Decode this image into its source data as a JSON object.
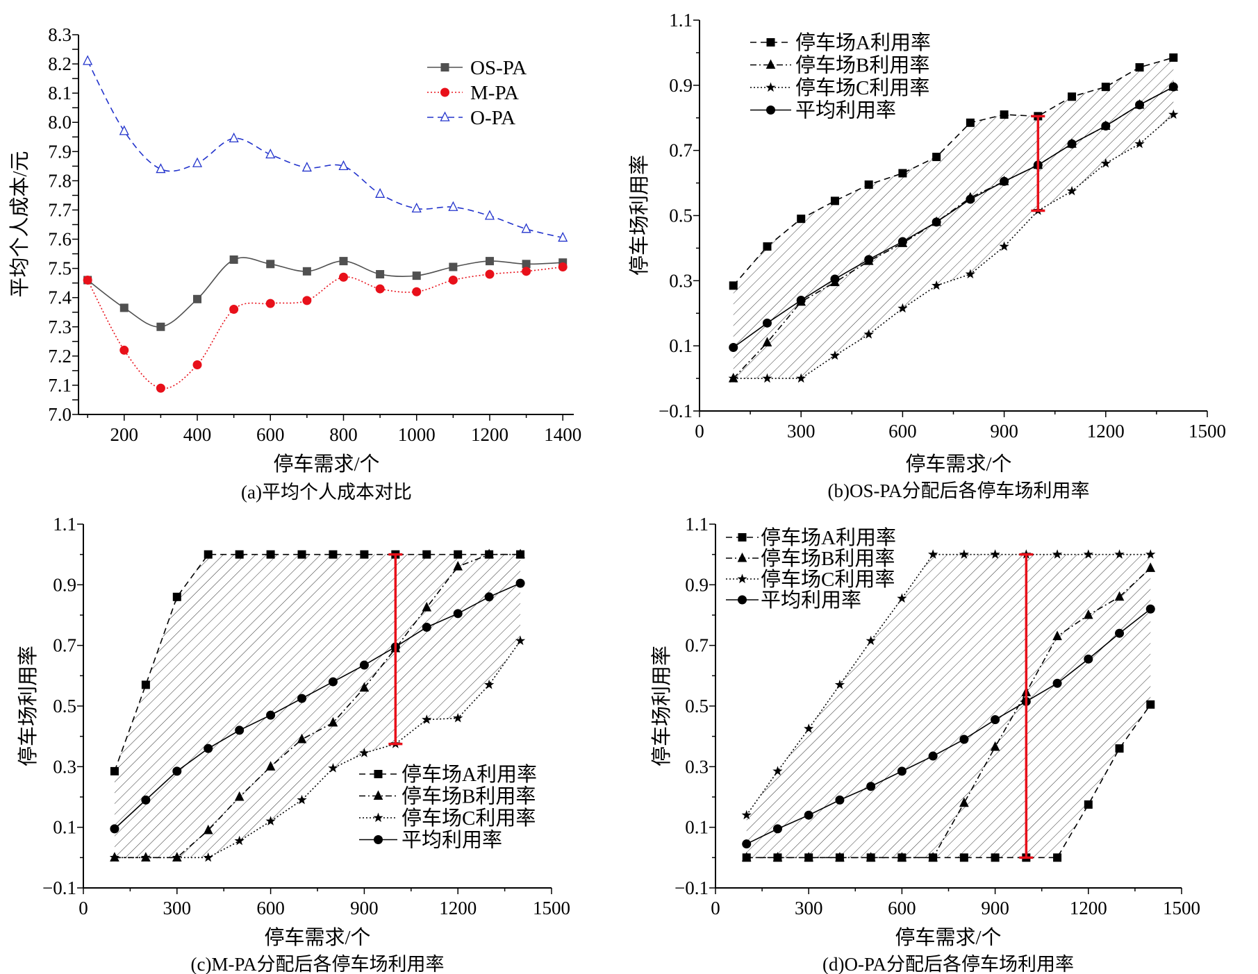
{
  "chart_data": [
    {
      "type": "line",
      "panel": "a",
      "caption": "(a)平均个人成本对比",
      "xlabel": "停车需求/个",
      "ylabel": "平均个人成本/元",
      "xlim": [
        75,
        1430
      ],
      "ylim": [
        7.0,
        8.3
      ],
      "xticks": [
        200,
        400,
        600,
        800,
        1000,
        1200,
        1400
      ],
      "yticks": [
        "7.0",
        "7.1",
        "7.2",
        "7.3",
        "7.4",
        "7.5",
        "7.6",
        "7.7",
        "7.8",
        "7.9",
        "8.0",
        "8.1",
        "8.2",
        "8.3"
      ],
      "legend_position": "top-right",
      "grid": false,
      "smooth": true,
      "x": [
        100,
        200,
        300,
        400,
        500,
        600,
        700,
        800,
        900,
        1000,
        1100,
        1200,
        1300,
        1400
      ],
      "series": [
        {
          "name": "OS-PA",
          "color": "#505050",
          "style": "solid",
          "marker": "square-filled",
          "values": [
            7.46,
            7.365,
            7.3,
            7.395,
            7.53,
            7.515,
            7.49,
            7.525,
            7.48,
            7.475,
            7.505,
            7.525,
            7.515,
            7.52
          ]
        },
        {
          "name": "M-PA",
          "color": "#e8101a",
          "style": "dotted",
          "marker": "circle-filled",
          "values": [
            7.46,
            7.22,
            7.09,
            7.17,
            7.36,
            7.38,
            7.39,
            7.47,
            7.43,
            7.42,
            7.46,
            7.48,
            7.49,
            7.505
          ]
        },
        {
          "name": "O-PA",
          "color": "#2233cc",
          "style": "dashed",
          "marker": "triangle-open",
          "values": [
            8.21,
            7.97,
            7.84,
            7.86,
            7.945,
            7.89,
            7.845,
            7.85,
            7.755,
            7.705,
            7.71,
            7.68,
            7.635,
            7.605
          ]
        }
      ]
    },
    {
      "type": "line",
      "panel": "b",
      "caption": "(b)OS-PA分配后各停车场利用率",
      "xlabel": "停车需求/个",
      "ylabel": "停车场利用率",
      "xlim": [
        0,
        1500
      ],
      "ylim": [
        -0.1,
        1.1
      ],
      "xticks": [
        0,
        300,
        600,
        900,
        1200,
        1500
      ],
      "yticks": [
        "−0.1",
        "0.1",
        "0.3",
        "0.5",
        "0.7",
        "0.9",
        "1.1"
      ],
      "legend_position": "top-left",
      "grid": false,
      "hatched_range": true,
      "error_bar": {
        "x": 1000,
        "low": 0.515,
        "high": 0.805,
        "color": "#e8101a"
      },
      "x": [
        100,
        200,
        300,
        400,
        500,
        600,
        700,
        800,
        900,
        1000,
        1100,
        1200,
        1300,
        1400
      ],
      "series": [
        {
          "name": "停车场A利用率",
          "color": "#000000",
          "style": "dashed",
          "marker": "square-filled",
          "values": [
            0.285,
            0.405,
            0.49,
            0.545,
            0.595,
            0.63,
            0.68,
            0.785,
            0.81,
            0.805,
            0.865,
            0.895,
            0.955,
            0.985
          ]
        },
        {
          "name": "停车场B利用率",
          "color": "#000000",
          "style": "dashdot",
          "marker": "triangle-filled",
          "values": [
            0,
            0.11,
            0.235,
            0.295,
            0.36,
            0.415,
            0.48,
            0.555,
            0.605,
            0.655,
            0.72,
            0.775,
            0.84,
            0.895
          ]
        },
        {
          "name": "停车场C利用率",
          "color": "#000000",
          "style": "dotted",
          "marker": "star-filled",
          "values": [
            0,
            0,
            0,
            0.07,
            0.135,
            0.215,
            0.285,
            0.32,
            0.405,
            0.515,
            0.575,
            0.66,
            0.72,
            0.81
          ]
        },
        {
          "name": "平均利用率",
          "color": "#000000",
          "style": "solid",
          "marker": "circle-filled",
          "values": [
            0.095,
            0.17,
            0.24,
            0.305,
            0.365,
            0.42,
            0.48,
            0.55,
            0.605,
            0.655,
            0.72,
            0.775,
            0.84,
            0.895
          ]
        }
      ]
    },
    {
      "type": "line",
      "panel": "c",
      "caption": "(c)M-PA分配后各停车场利用率",
      "xlabel": "停车需求/个",
      "ylabel": "停车场利用率",
      "xlim": [
        0,
        1500
      ],
      "ylim": [
        -0.1,
        1.1
      ],
      "xticks": [
        0,
        300,
        600,
        900,
        1200,
        1500
      ],
      "yticks": [
        "−0.1",
        "0.1",
        "0.3",
        "0.5",
        "0.7",
        "0.9",
        "1.1"
      ],
      "legend_position": "bottom-right",
      "grid": false,
      "hatched_range": true,
      "error_bar": {
        "x": 1000,
        "low": 0.375,
        "high": 1.0,
        "color": "#e8101a"
      },
      "x": [
        100,
        200,
        300,
        400,
        500,
        600,
        700,
        800,
        900,
        1000,
        1100,
        1200,
        1300,
        1400
      ],
      "series": [
        {
          "name": "停车场A利用率",
          "color": "#000000",
          "style": "dashed",
          "marker": "square-filled",
          "values": [
            0.285,
            0.57,
            0.86,
            1,
            1,
            1,
            1,
            1,
            1,
            1,
            1,
            1,
            1,
            1
          ]
        },
        {
          "name": "停车场B利用率",
          "color": "#000000",
          "style": "dashdot",
          "marker": "triangle-filled",
          "values": [
            0,
            0,
            0,
            0.09,
            0.2,
            0.3,
            0.39,
            0.445,
            0.56,
            0.69,
            0.825,
            0.96,
            1,
            1
          ]
        },
        {
          "name": "停车场C利用率",
          "color": "#000000",
          "style": "dotted",
          "marker": "star-filled",
          "values": [
            0,
            0,
            0,
            0,
            0.055,
            0.12,
            0.19,
            0.295,
            0.345,
            0.375,
            0.455,
            0.46,
            0.57,
            0.715
          ]
        },
        {
          "name": "平均利用率",
          "color": "#000000",
          "style": "solid",
          "marker": "circle-filled",
          "values": [
            0.095,
            0.19,
            0.285,
            0.36,
            0.42,
            0.47,
            0.525,
            0.58,
            0.635,
            0.695,
            0.76,
            0.805,
            0.86,
            0.905
          ]
        }
      ]
    },
    {
      "type": "line",
      "panel": "d",
      "caption": "(d)O-PA分配后各停车场利用率",
      "xlabel": "停车需求/个",
      "ylabel": "停车场利用率",
      "xlim": [
        0,
        1500
      ],
      "ylim": [
        -0.1,
        1.1
      ],
      "xticks": [
        0,
        300,
        600,
        900,
        1200,
        1500
      ],
      "yticks": [
        "−0.1",
        "0.1",
        "0.3",
        "0.5",
        "0.7",
        "0.9",
        "1.1"
      ],
      "legend_position": "top-left",
      "grid": false,
      "hatched_range": true,
      "error_bar": {
        "x": 1000,
        "low": 0.0,
        "high": 1.0,
        "color": "#e8101a"
      },
      "x": [
        100,
        200,
        300,
        400,
        500,
        600,
        700,
        800,
        900,
        1000,
        1100,
        1200,
        1300,
        1400
      ],
      "series": [
        {
          "name": "停车场A利用率",
          "color": "#000000",
          "style": "dashed",
          "marker": "square-filled",
          "values": [
            0,
            0,
            0,
            0,
            0,
            0,
            0,
            0,
            0,
            0,
            0,
            0.175,
            0.36,
            0.505
          ]
        },
        {
          "name": "停车场B利用率",
          "color": "#000000",
          "style": "dashdot",
          "marker": "triangle-filled",
          "values": [
            0,
            0,
            0,
            0,
            0,
            0,
            0,
            0.18,
            0.365,
            0.545,
            0.73,
            0.8,
            0.86,
            0.955
          ]
        },
        {
          "name": "停车场C利用率",
          "color": "#000000",
          "style": "dotted",
          "marker": "star-filled",
          "values": [
            0.14,
            0.285,
            0.425,
            0.57,
            0.715,
            0.855,
            1,
            1,
            1,
            1,
            1,
            1,
            1,
            1
          ]
        },
        {
          "name": "平均利用率",
          "color": "#000000",
          "style": "solid",
          "marker": "circle-filled",
          "values": [
            0.045,
            0.095,
            0.14,
            0.19,
            0.235,
            0.285,
            0.335,
            0.39,
            0.455,
            0.515,
            0.575,
            0.655,
            0.74,
            0.82
          ]
        }
      ]
    }
  ]
}
